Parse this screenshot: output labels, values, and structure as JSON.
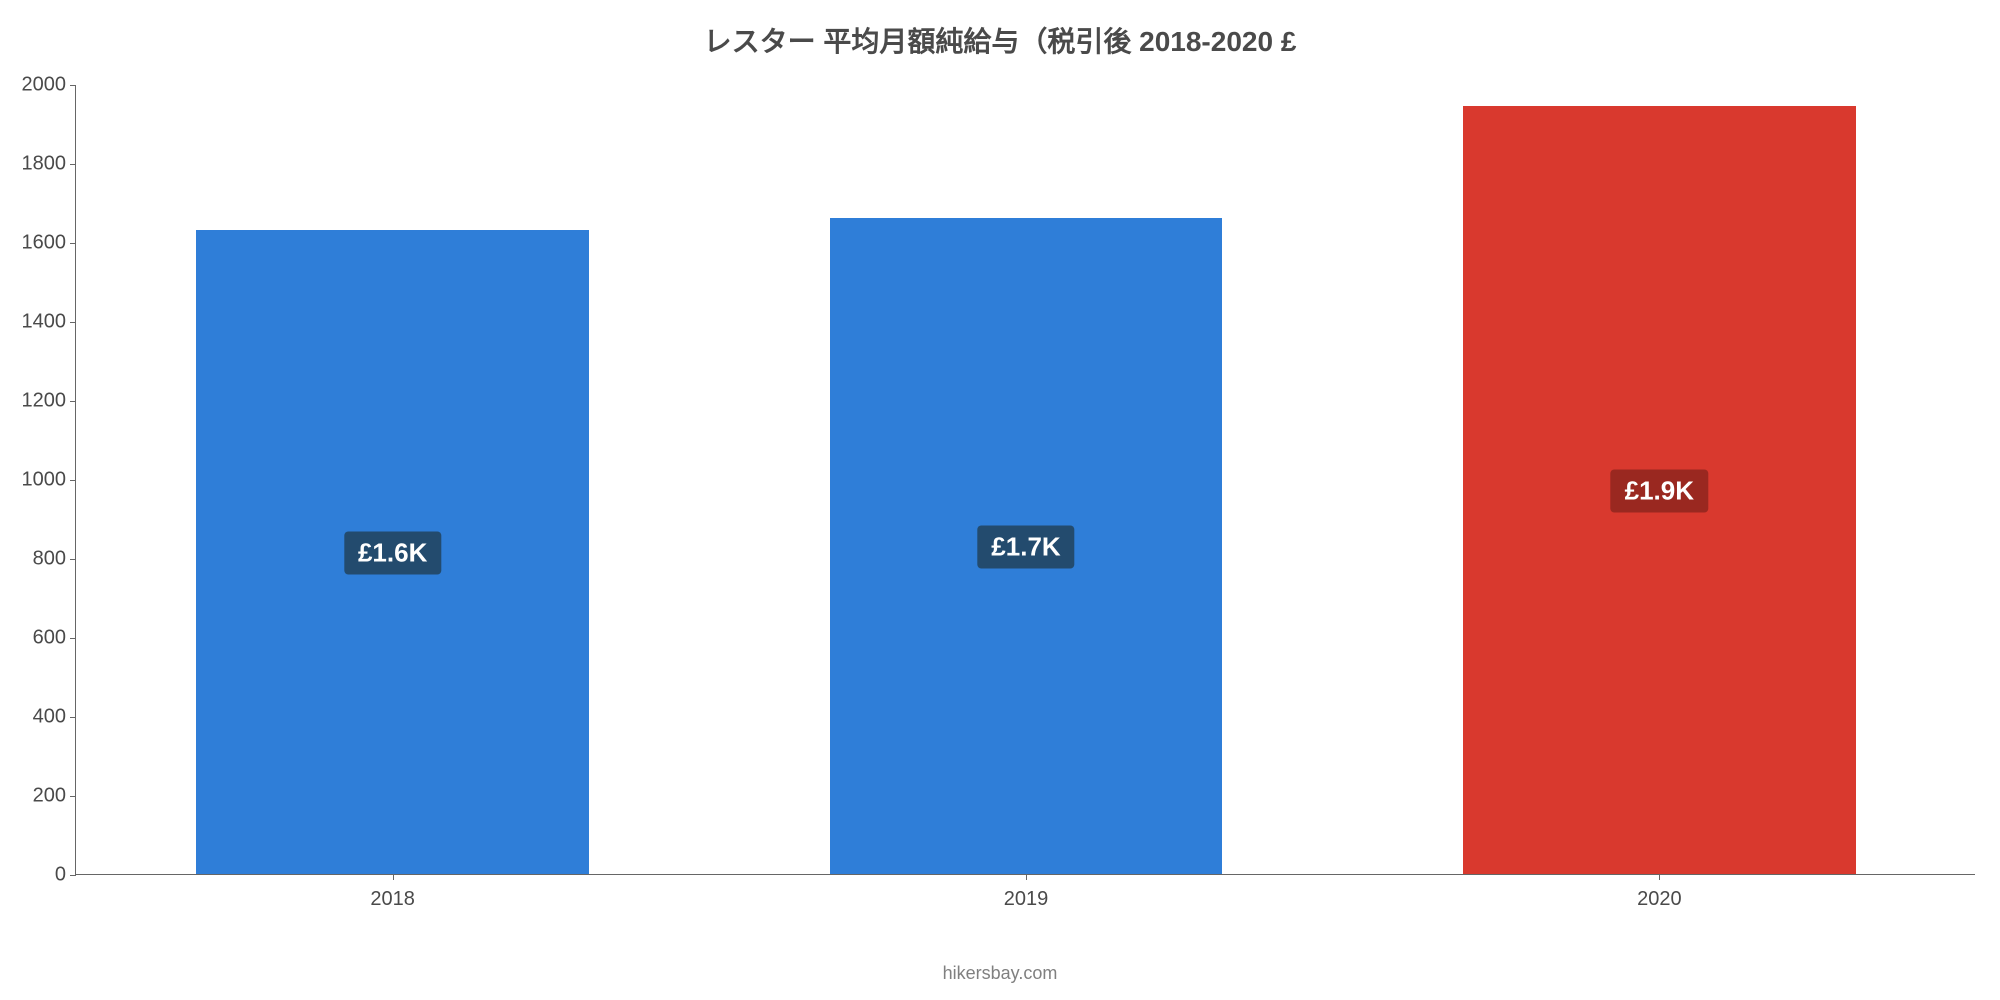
{
  "chart": {
    "type": "bar",
    "title": "レスター 平均月額純給与（税引後 2018-2020 £",
    "title_fontsize": 28,
    "title_color": "#4a4a4a",
    "background_color": "#ffffff",
    "axis_color": "#666666",
    "tick_label_color": "#4a4a4a",
    "tick_fontsize": 20,
    "ylim": [
      0,
      2000
    ],
    "ytick_step": 200,
    "yticks": [
      0,
      200,
      400,
      600,
      800,
      1000,
      1200,
      1400,
      1600,
      1800,
      2000
    ],
    "categories": [
      "2018",
      "2019",
      "2020"
    ],
    "values": [
      1630,
      1660,
      1945
    ],
    "value_labels": [
      "£1.6K",
      "£1.7K",
      "£1.9K"
    ],
    "bar_colors": [
      "#2f7ed8",
      "#2f7ed8",
      "#d9392e"
    ],
    "label_bg_colors": [
      "#234b6e",
      "#234b6e",
      "#9a2820"
    ],
    "label_text_color": "#ffffff",
    "label_fontsize": 26,
    "bar_width_ratio": 0.62,
    "footer_text": "hikersbay.com",
    "footer_color": "#808080",
    "footer_fontsize": 18
  }
}
